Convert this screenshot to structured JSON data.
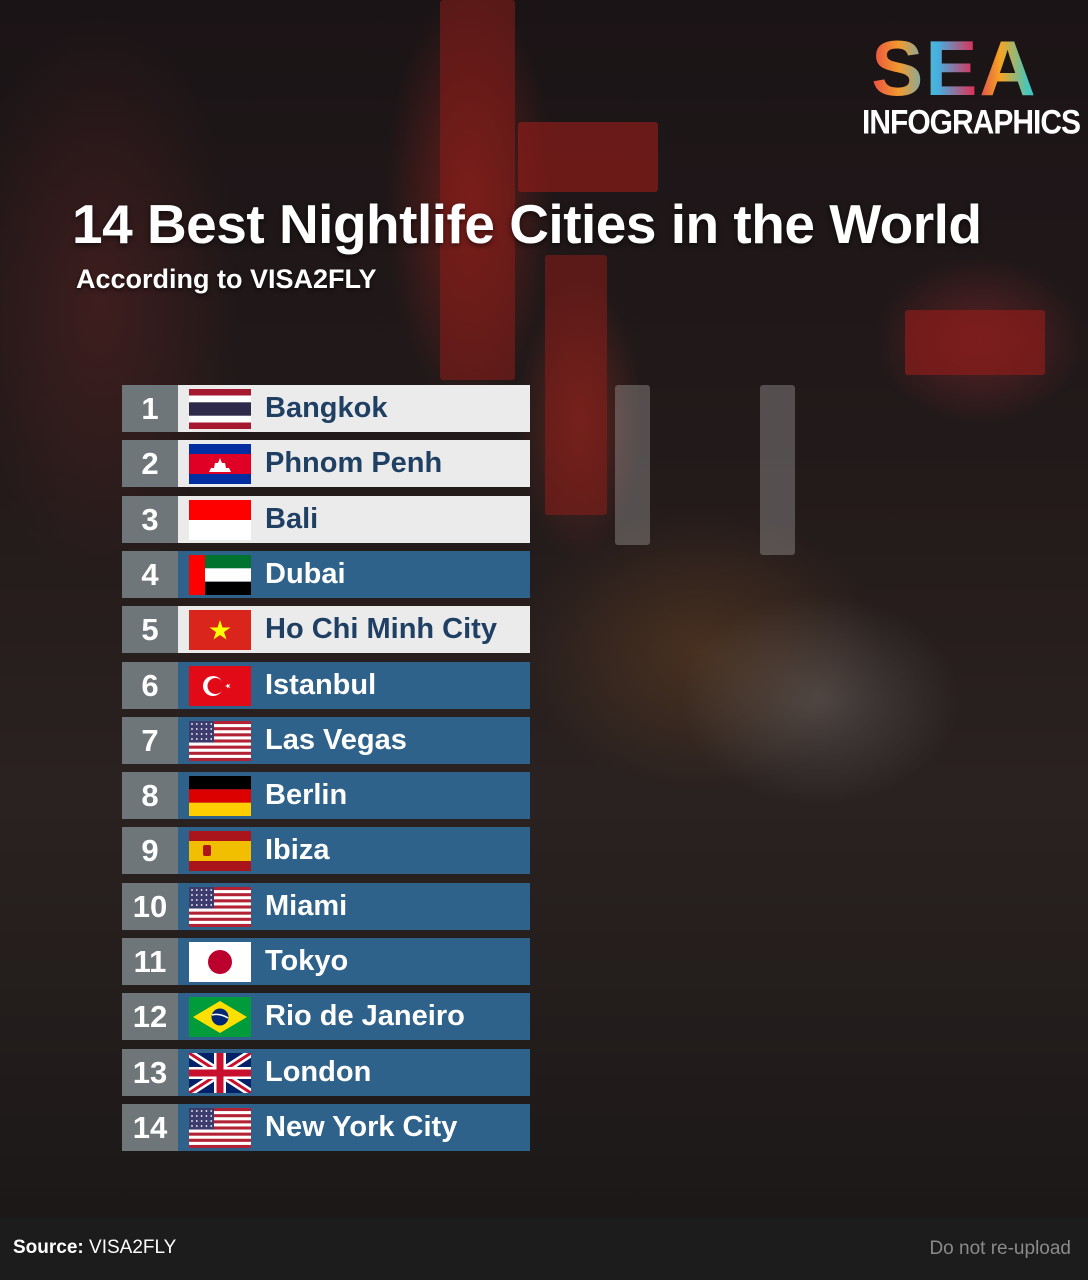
{
  "logo": {
    "top": "SEA",
    "bottom": "INFOGRAPHICS"
  },
  "header": {
    "title": "14 Best Nightlife Cities in the World",
    "subtitle": "According to VISA2FLY"
  },
  "colors": {
    "light_bar": "#ebebeb",
    "dark_bar": "#2f628a",
    "rank_tab": "#6f7679",
    "light_text": "#1f3f63"
  },
  "ranking": [
    {
      "rank": "1",
      "city": "Bangkok",
      "flag": "thailand",
      "style": "light"
    },
    {
      "rank": "2",
      "city": "Phnom Penh",
      "flag": "cambodia",
      "style": "light"
    },
    {
      "rank": "3",
      "city": "Bali",
      "flag": "indonesia",
      "style": "light"
    },
    {
      "rank": "4",
      "city": "Dubai",
      "flag": "uae",
      "style": "dark"
    },
    {
      "rank": "5",
      "city": "Ho Chi Minh City",
      "flag": "vietnam",
      "style": "light"
    },
    {
      "rank": "6",
      "city": "Istanbul",
      "flag": "turkey",
      "style": "dark"
    },
    {
      "rank": "7",
      "city": "Las Vegas",
      "flag": "usa",
      "style": "dark"
    },
    {
      "rank": "8",
      "city": "Berlin",
      "flag": "germany",
      "style": "dark"
    },
    {
      "rank": "9",
      "city": "Ibiza",
      "flag": "spain",
      "style": "dark"
    },
    {
      "rank": "10",
      "city": "Miami",
      "flag": "usa",
      "style": "dark"
    },
    {
      "rank": "11",
      "city": "Tokyo",
      "flag": "japan",
      "style": "dark"
    },
    {
      "rank": "12",
      "city": "Rio de Janeiro",
      "flag": "brazil",
      "style": "dark"
    },
    {
      "rank": "13",
      "city": "London",
      "flag": "uk",
      "style": "dark"
    },
    {
      "rank": "14",
      "city": "New York City",
      "flag": "usa",
      "style": "dark"
    }
  ],
  "footer": {
    "source_label": "Source:",
    "source_value": "VISA2FLY",
    "notice": "Do not re-upload"
  }
}
